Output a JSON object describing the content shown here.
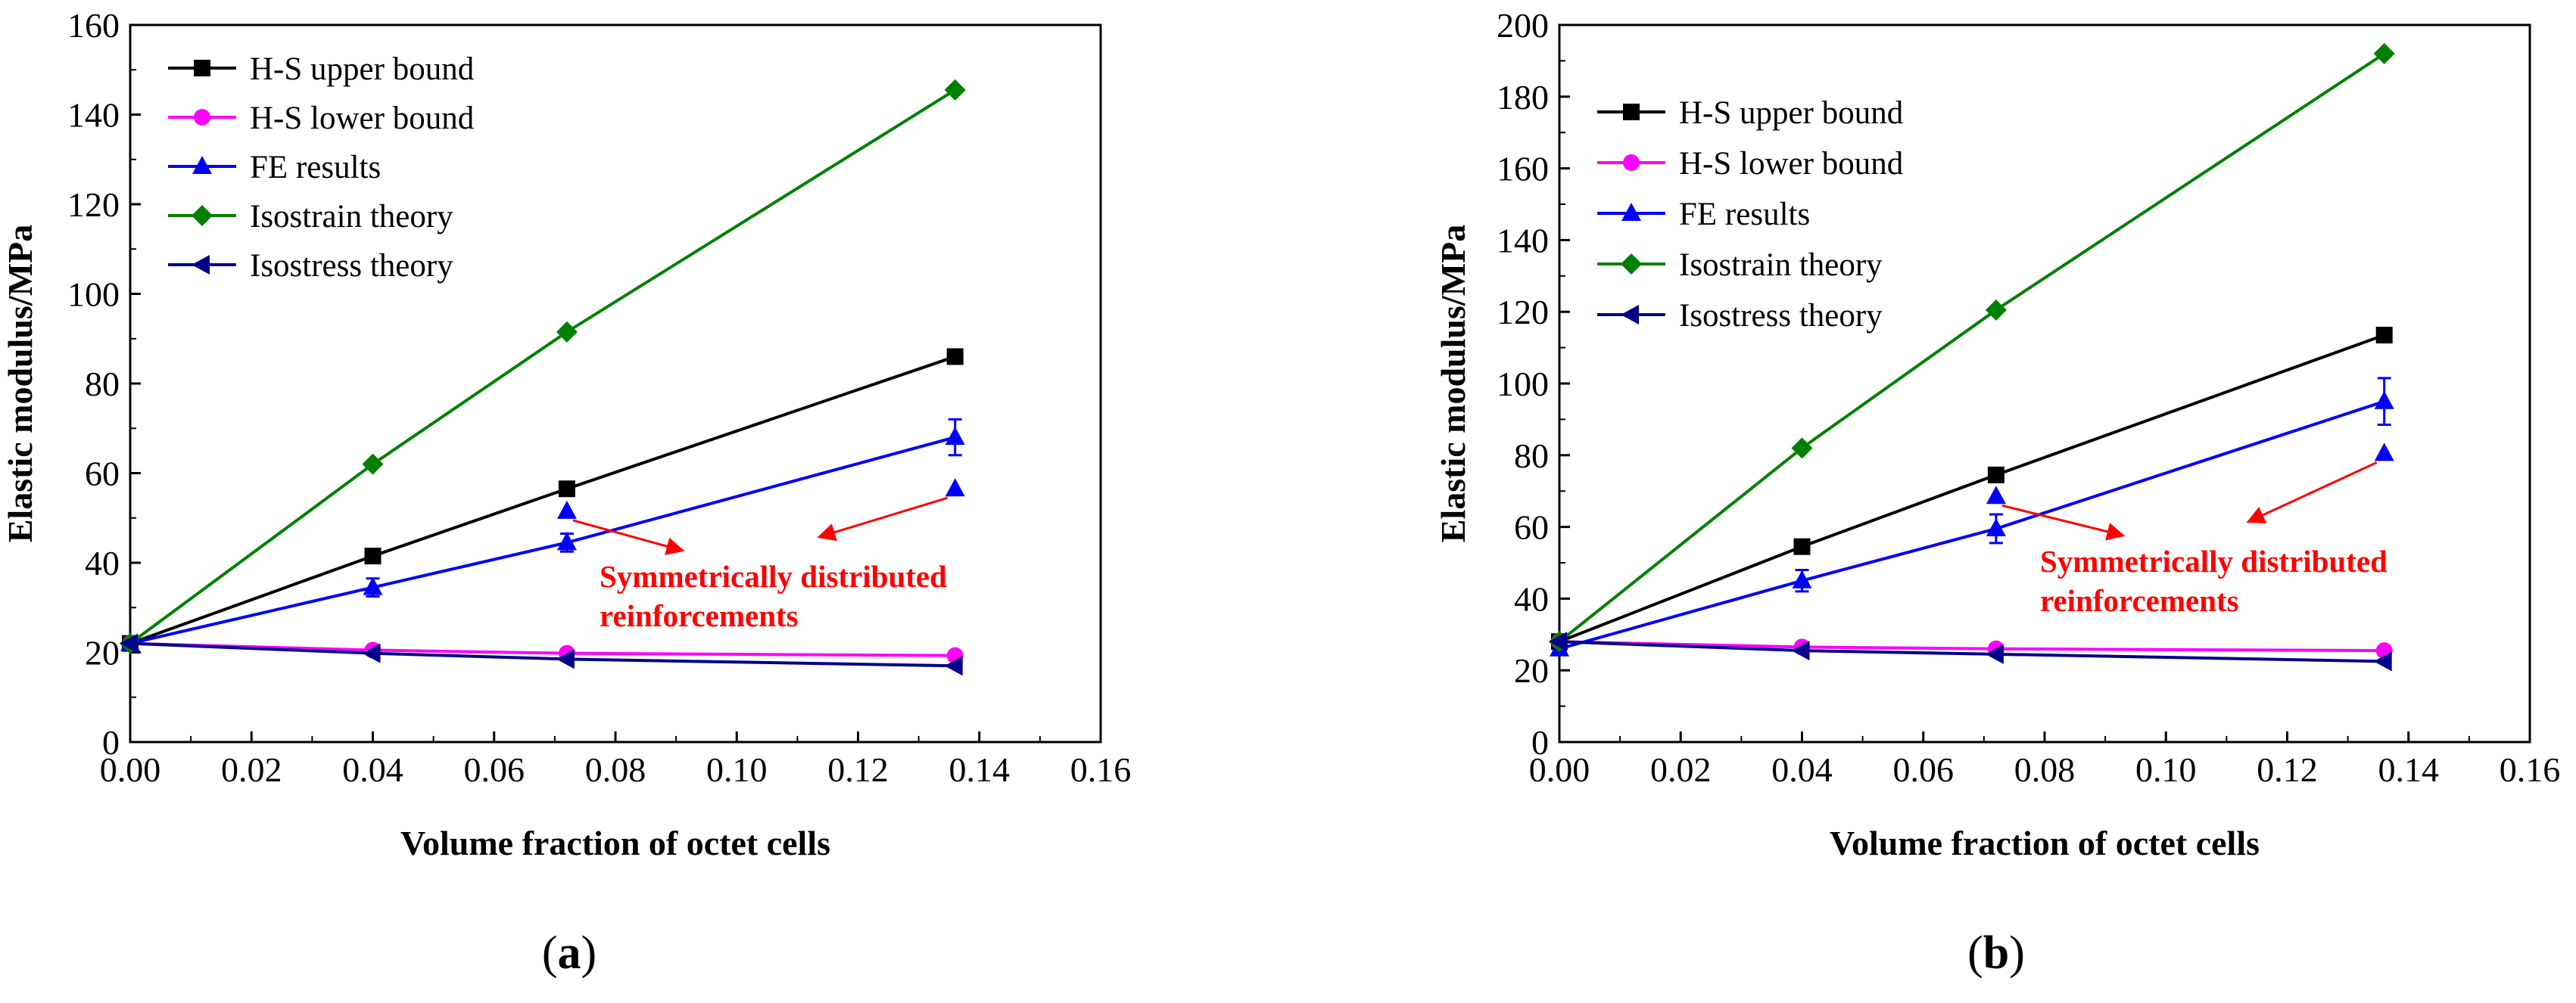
{
  "chart_data": [
    {
      "type": "line",
      "panel_label": "(a)",
      "panel_letter": "a",
      "xlabel": "Volume fraction of octet cells",
      "ylabel": "Elastic modulus/MPa",
      "xlim": [
        0,
        0.16
      ],
      "ylim": [
        0,
        160
      ],
      "xticks": [
        "0.00",
        "0.02",
        "0.04",
        "0.06",
        "0.08",
        "0.10",
        "0.12",
        "0.14",
        "0.16"
      ],
      "yticks": [
        "0",
        "20",
        "40",
        "60",
        "80",
        "100",
        "120",
        "140",
        "160"
      ],
      "x": [
        0,
        0.04,
        0.072,
        0.136
      ],
      "series": [
        {
          "name": "H-S upper bound",
          "color": "#000000",
          "marker": "square",
          "values": [
            22,
            41.5,
            56.5,
            86
          ]
        },
        {
          "name": "H-S lower bound",
          "color": "#ff00ff",
          "marker": "circle",
          "values": [
            22,
            20.5,
            19.8,
            19.3
          ]
        },
        {
          "name": "FE results",
          "color": "#0000ff",
          "marker": "triangle-up",
          "values": [
            22,
            34.5,
            44.5,
            68
          ],
          "errors": [
            1,
            2,
            2,
            4
          ]
        },
        {
          "name": "Isostrain theory",
          "color": "#008000",
          "marker": "diamond",
          "values": [
            22,
            62,
            91.5,
            145.5
          ]
        },
        {
          "name": "Isostress theory",
          "color": "#00008b",
          "marker": "triangle-left",
          "values": [
            22,
            19.8,
            18.5,
            17
          ]
        }
      ],
      "extra_points": [
        {
          "name": "Symmetrically distributed reinforcements",
          "color": "#0000ff",
          "marker": "triangle-up",
          "x": [
            0.072,
            0.136
          ],
          "y": [
            51.5,
            56.5
          ]
        }
      ],
      "annotation": {
        "line1": "Symmetrically distributed",
        "line2": "reinforcements",
        "color": "#ff0000",
        "targets": [
          [
            0.072,
            51.5
          ],
          [
            0.136,
            56.5
          ]
        ]
      }
    },
    {
      "type": "line",
      "panel_label": "(b)",
      "panel_letter": "b",
      "xlabel": "Volume fraction of octet cells",
      "ylabel": "Elastic modulus/MPa",
      "xlim": [
        0,
        0.16
      ],
      "ylim": [
        0,
        200
      ],
      "xticks": [
        "0.00",
        "0.02",
        "0.04",
        "0.06",
        "0.08",
        "0.10",
        "0.12",
        "0.14",
        "0.16"
      ],
      "yticks": [
        "0",
        "20",
        "40",
        "60",
        "80",
        "100",
        "120",
        "140",
        "160",
        "180",
        "200"
      ],
      "x": [
        0,
        0.04,
        0.072,
        0.136
      ],
      "series": [
        {
          "name": "H-S upper bound",
          "color": "#000000",
          "marker": "square",
          "values": [
            28,
            54.5,
            74.5,
            113.5
          ]
        },
        {
          "name": "H-S lower bound",
          "color": "#ff00ff",
          "marker": "circle",
          "values": [
            28,
            26.5,
            26,
            25.5
          ]
        },
        {
          "name": "FE results",
          "color": "#0000ff",
          "marker": "triangle-up",
          "values": [
            26,
            45,
            59.5,
            95
          ],
          "errors": [
            1,
            3,
            4,
            6.5
          ]
        },
        {
          "name": "Isostrain theory",
          "color": "#008000",
          "marker": "diamond",
          "values": [
            28,
            82,
            120.5,
            192
          ]
        },
        {
          "name": "Isostress theory",
          "color": "#00008b",
          "marker": "triangle-left",
          "values": [
            28,
            25.5,
            24.5,
            22.5
          ]
        }
      ],
      "extra_points": [
        {
          "name": "Symmetrically distributed reinforcements",
          "color": "#0000ff",
          "marker": "triangle-up",
          "x": [
            0.072,
            0.136
          ],
          "y": [
            68.5,
            80.5
          ]
        }
      ],
      "annotation": {
        "line1": "Symmetrically distributed",
        "line2": "reinforcements",
        "color": "#ff0000",
        "targets": [
          [
            0.072,
            68.5
          ],
          [
            0.136,
            80.5
          ]
        ]
      }
    }
  ]
}
